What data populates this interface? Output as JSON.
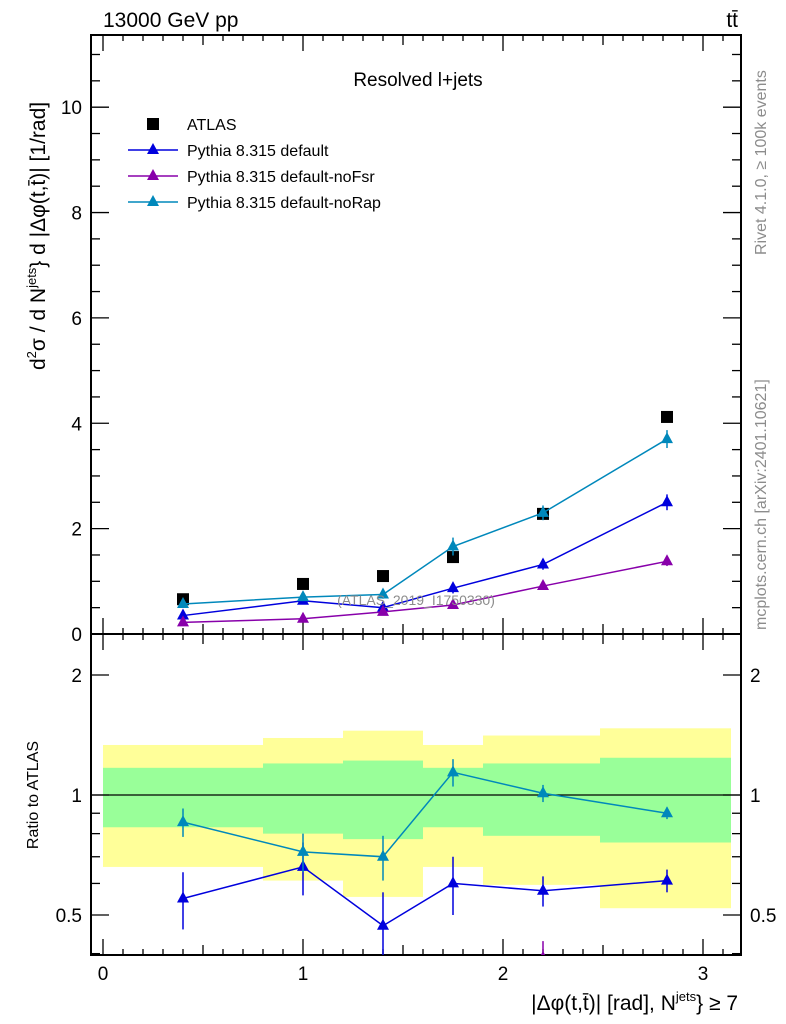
{
  "header": {
    "left": "13000 GeV pp",
    "right": "tt̄"
  },
  "side": {
    "rivet": "Rivet 4.1.0, ≥ 100k events",
    "mcplots": "mcplots.cern.ch [arXiv:2401.10621]"
  },
  "watermark": "(ATLAS_2019_I1750330)",
  "chart_data": [
    {
      "type": "line",
      "title": "Resolved l+jets",
      "ylabel_parts": [
        "d",
        "2",
        "σ / d N",
        "jets",
        "} d |Δφ(t,t̄)| [1/rad]"
      ],
      "xlabel_parts": [
        "|Δφ(t,t̄)| [rad], N",
        "jets",
        "} ≥ 7"
      ],
      "xlim": [
        -0.06,
        3.19
      ],
      "ylim": [
        0,
        11.37
      ],
      "yticks": [
        "0",
        "2",
        "4",
        "6",
        "8",
        "10"
      ],
      "x": [
        0.4,
        1.0,
        1.4,
        1.75,
        2.2,
        2.82
      ],
      "series": [
        {
          "name": "ATLAS",
          "marker": "square",
          "color": "#000000",
          "values": [
            0.66,
            0.95,
            1.1,
            1.46,
            2.28,
            4.12
          ]
        },
        {
          "name": "Pythia 8.315 default",
          "marker": "triangle",
          "color": "#0000dd",
          "values": [
            0.35,
            0.63,
            0.5,
            0.87,
            1.32,
            2.5
          ],
          "errors": [
            0.04,
            0.06,
            0.06,
            0.1,
            0.1,
            0.15
          ]
        },
        {
          "name": "Pythia 8.315 default-noFsr",
          "marker": "triangle",
          "color": "#8800aa",
          "values": [
            0.22,
            0.29,
            0.42,
            0.55,
            0.91,
            1.38
          ],
          "errors": [
            0.03,
            0.04,
            0.05,
            0.05,
            0.07,
            0.09
          ]
        },
        {
          "name": "Pythia 8.315 default-noRap",
          "marker": "triangle",
          "color": "#0088bb",
          "values": [
            0.57,
            0.7,
            0.75,
            1.66,
            2.3,
            3.7
          ],
          "errors": [
            0.05,
            0.07,
            0.08,
            0.17,
            0.14,
            0.17
          ]
        }
      ]
    },
    {
      "type": "line",
      "ylabel": "Ratio to ATLAS",
      "yscale": "log",
      "ylim": [
        0.397,
        2.53
      ],
      "yticks": [
        "0.5",
        "1",
        "2"
      ],
      "xticks": [
        "0",
        "1",
        "2",
        "3"
      ],
      "bins": [
        0,
        0.8,
        1.2,
        1.6,
        1.9,
        2.485,
        3.14
      ],
      "band_outer": {
        "color": "#ffff99",
        "low": [
          0.66,
          0.61,
          0.555,
          0.66,
          0.595,
          0.52
        ],
        "high": [
          1.335,
          1.39,
          1.45,
          1.335,
          1.41,
          1.47
        ]
      },
      "band_inner": {
        "color": "#99ff99",
        "low": [
          0.83,
          0.8,
          0.775,
          0.83,
          0.79,
          0.76
        ],
        "high": [
          1.17,
          1.2,
          1.22,
          1.17,
          1.2,
          1.24
        ]
      },
      "x": [
        0.4,
        1.0,
        1.4,
        1.75,
        2.2,
        2.82
      ],
      "series": [
        {
          "name": "Pythia 8.315 default",
          "color": "#0000dd",
          "values": [
            0.55,
            0.66,
            0.47,
            0.6,
            0.575,
            0.61
          ],
          "errors": [
            0.09,
            0.1,
            0.1,
            0.1,
            0.05,
            0.04
          ]
        },
        {
          "name": "Pythia 8.315 default-noFsr",
          "color": "#8800aa",
          "values": [
            null,
            null,
            null,
            null,
            0.39,
            null
          ],
          "errors": [
            0,
            0,
            0,
            0,
            0.04,
            0
          ]
        },
        {
          "name": "Pythia 8.315 default-noRap",
          "color": "#0088bb",
          "values": [
            0.855,
            0.72,
            0.7,
            1.14,
            1.01,
            0.9
          ],
          "errors": [
            0.07,
            0.08,
            0.09,
            0.09,
            0.05,
            0.03
          ]
        }
      ]
    }
  ]
}
